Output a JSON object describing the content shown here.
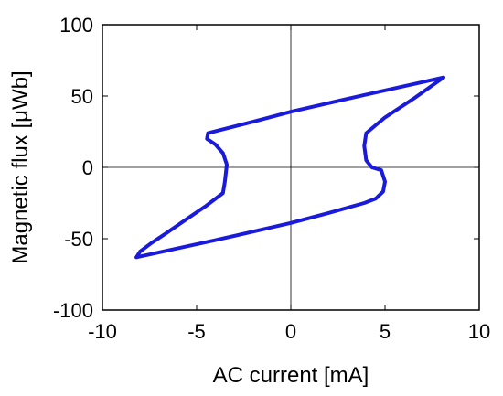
{
  "chart_data": {
    "type": "line",
    "title": "",
    "xlabel": "AC current [mA]",
    "ylabel": "Magnetic flux [μWb]",
    "xlim": [
      -10,
      10
    ],
    "ylim": [
      -100,
      100
    ],
    "x_ticks": [
      -10,
      -5,
      0,
      5,
      10
    ],
    "y_ticks": [
      -100,
      -50,
      0,
      50,
      100
    ],
    "grid": false,
    "zero_lines": true,
    "line_color": "#1a1adc",
    "series": [
      {
        "x": [
          8.1,
          4.0,
          0.0,
          -2.0,
          -4.4,
          -4.45,
          -4.0,
          -3.6,
          -3.4,
          -3.5,
          -3.6,
          -4.5,
          -5.5,
          -6.6,
          -7.4,
          -8.0,
          -8.2,
          -4.0,
          0.0,
          2.0,
          3.9,
          4.5,
          4.9,
          5.0,
          4.8,
          4.3,
          4.0,
          3.9,
          4.0,
          5.0,
          6.5,
          8.1
        ],
        "y": [
          63,
          51,
          39,
          32,
          24,
          20,
          16,
          10,
          2,
          -10,
          -18,
          -27,
          -36,
          -46,
          -53,
          -59,
          -63,
          -51,
          -39,
          -32,
          -25,
          -22,
          -17,
          -10,
          -2,
          0,
          5,
          15,
          24,
          35,
          48,
          63
        ]
      }
    ]
  }
}
